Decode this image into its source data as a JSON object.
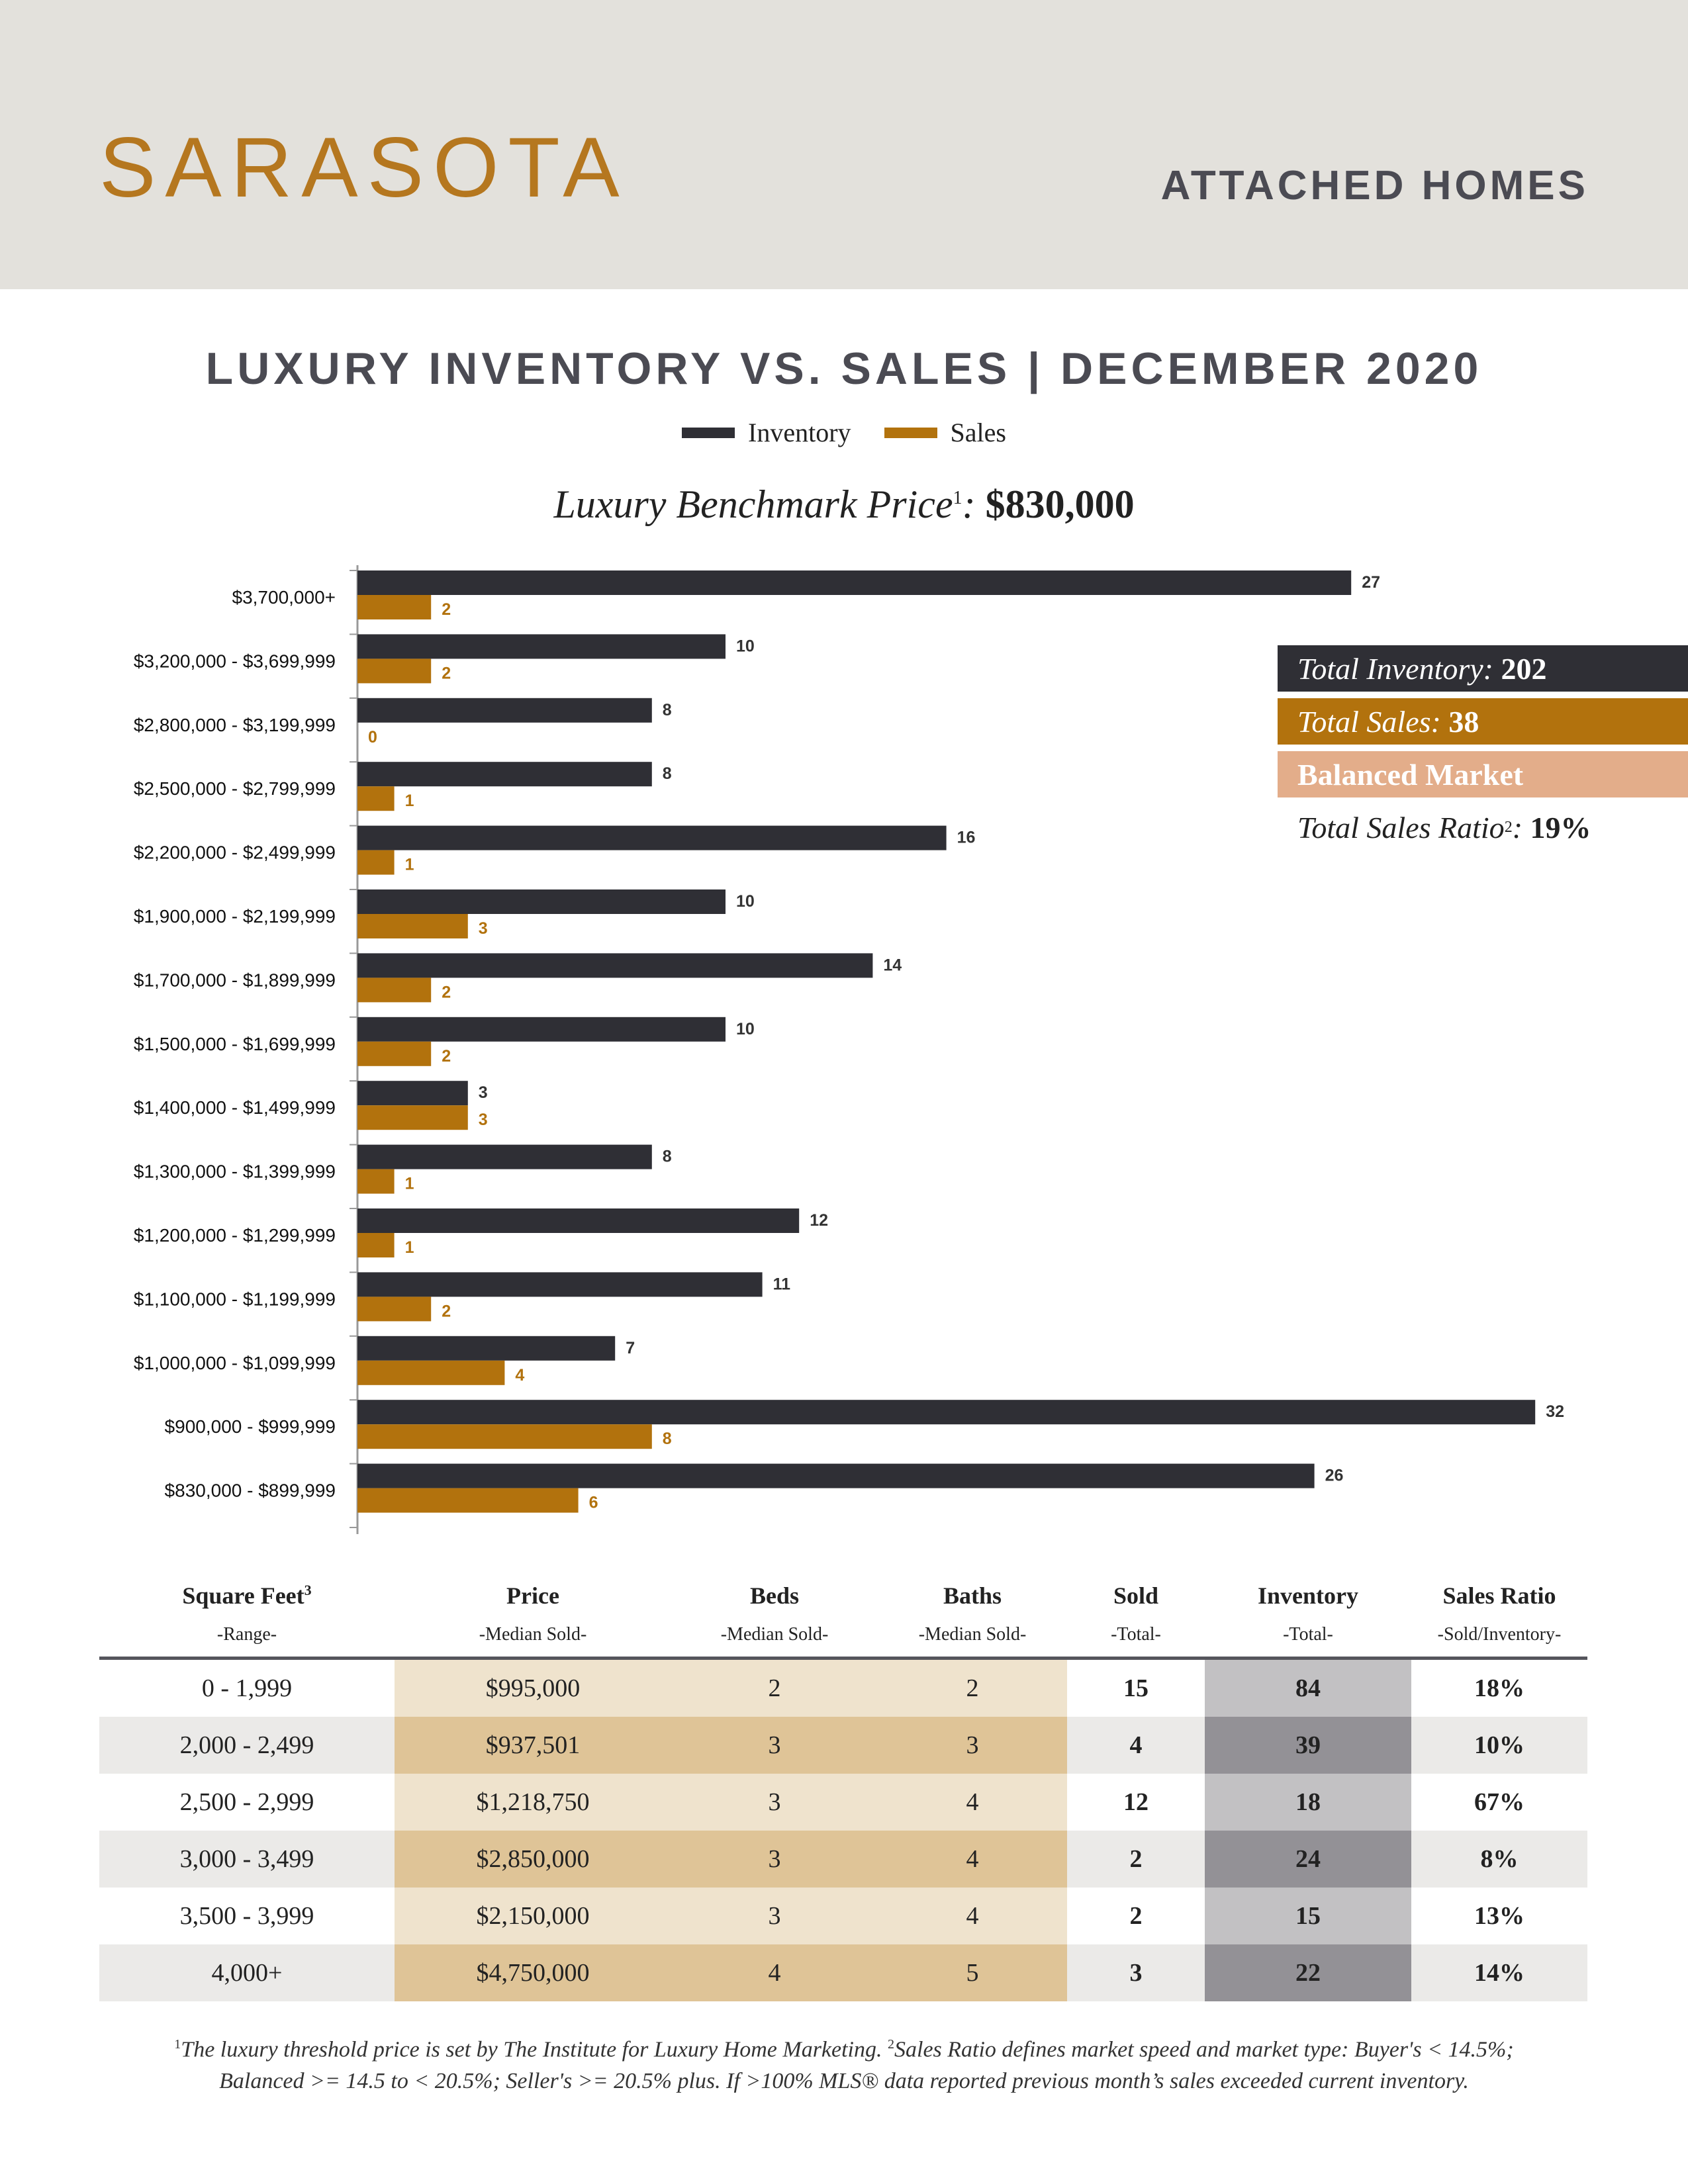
{
  "header": {
    "city": "SARASOTA",
    "doc_type": "ATTACHED HOMES"
  },
  "legend": {
    "inventory": "Inventory",
    "sales": "Sales"
  },
  "benchmark": {
    "label": "Luxury Benchmark Price",
    "sup": "1",
    "value": "$830,000"
  },
  "colors": {
    "inventory": "#2f2f35",
    "sales": "#b2720d",
    "balanced": "#e3ad8a",
    "header_bg": "#e3e1dc",
    "brand": "#b5771f"
  },
  "chart_data": {
    "type": "bar",
    "orientation": "horizontal",
    "title": "LUXURY INVENTORY VS. SALES | DECEMBER 2020",
    "categories": [
      "$3,700,000+",
      "$3,200,000 - $3,699,999",
      "$2,800,000 - $3,199,999",
      "$2,500,000 - $2,799,999",
      "$2,200,000 - $2,499,999",
      "$1,900,000 - $2,199,999",
      "$1,700,000 - $1,899,999",
      "$1,500,000 - $1,699,999",
      "$1,400,000 - $1,499,999",
      "$1,300,000 - $1,399,999",
      "$1,200,000 - $1,299,999",
      "$1,100,000 - $1,199,999",
      "$1,000,000 - $1,099,999",
      "$900,000 - $999,999",
      "$830,000 - $899,999"
    ],
    "series": [
      {
        "name": "Inventory",
        "values": [
          27,
          10,
          8,
          8,
          16,
          10,
          14,
          10,
          3,
          8,
          12,
          11,
          7,
          32,
          26
        ]
      },
      {
        "name": "Sales",
        "values": [
          2,
          2,
          0,
          1,
          1,
          3,
          2,
          2,
          3,
          1,
          1,
          2,
          4,
          8,
          6
        ]
      }
    ],
    "xlim": [
      0,
      32
    ],
    "grid": false,
    "legend": "top-center"
  },
  "summary": {
    "inventory_label": "Total Inventory:",
    "inventory_value": "202",
    "sales_label": "Total Sales:",
    "sales_value": "38",
    "market": "Balanced Market",
    "ratio_label": "Total Sales Ratio",
    "ratio_sup": "2",
    "ratio_value": "19%"
  },
  "table": {
    "headers": [
      {
        "title": "Square Feet",
        "sup": "3",
        "sub": "-Range-"
      },
      {
        "title": "Price",
        "sup": "",
        "sub": "-Median Sold-"
      },
      {
        "title": "Beds",
        "sup": "",
        "sub": "-Median Sold-"
      },
      {
        "title": "Baths",
        "sup": "",
        "sub": "-Median Sold-"
      },
      {
        "title": "Sold",
        "sup": "",
        "sub": "-Total-"
      },
      {
        "title": "Inventory",
        "sup": "",
        "sub": "-Total-"
      },
      {
        "title": "Sales Ratio",
        "sup": "",
        "sub": "-Sold/Inventory-"
      }
    ],
    "rows": [
      [
        "0 - 1,999",
        "$995,000",
        "2",
        "2",
        "15",
        "84",
        "18%"
      ],
      [
        "2,000 - 2,499",
        "$937,501",
        "3",
        "3",
        "4",
        "39",
        "10%"
      ],
      [
        "2,500 - 2,999",
        "$1,218,750",
        "3",
        "4",
        "12",
        "18",
        "67%"
      ],
      [
        "3,000 - 3,499",
        "$2,850,000",
        "3",
        "4",
        "2",
        "24",
        "8%"
      ],
      [
        "3,500 - 3,999",
        "$2,150,000",
        "3",
        "4",
        "2",
        "15",
        "13%"
      ],
      [
        "4,000+",
        "$4,750,000",
        "4",
        "5",
        "3",
        "22",
        "14%"
      ]
    ]
  },
  "footnote": {
    "sup1": "1",
    "text1": "The luxury threshold price is set by The Institute for Luxury Home Marketing.",
    "sup2": "2",
    "text2": "Sales Ratio defines market speed and market type: Buyer's < 14.5%;",
    "line2": "Balanced >= 14.5 to < 20.5%; Seller's >= 20.5% plus. If >100% MLS® data reported previous month’s sales exceeded current inventory."
  }
}
